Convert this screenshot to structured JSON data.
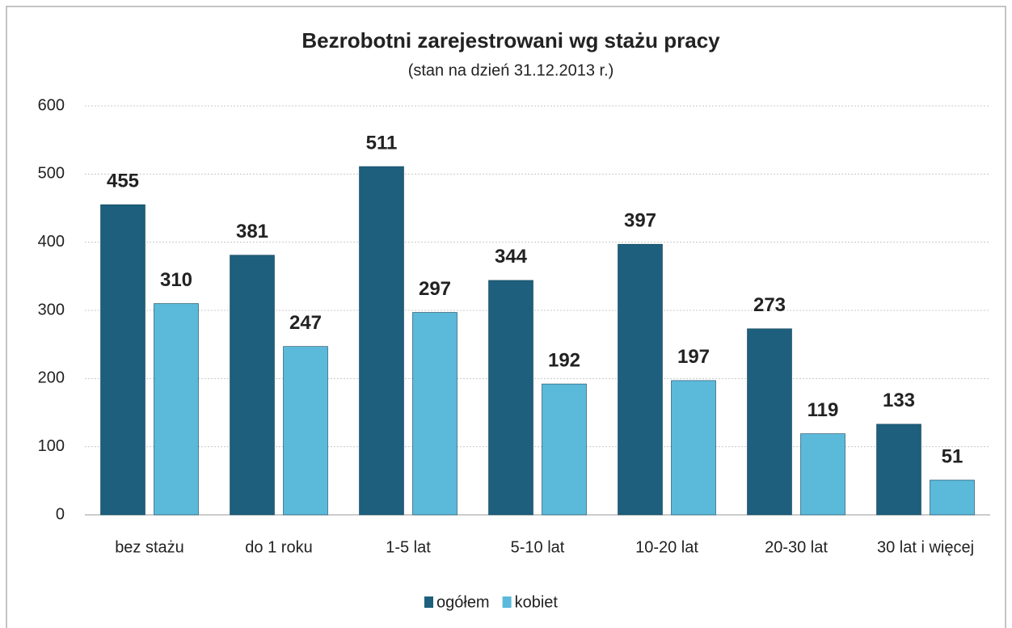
{
  "chart_data": {
    "type": "bar",
    "title": "Bezrobotni zarejestrowani wg stażu pracy",
    "subtitle": "(stan na dzień 31.12.2013 r.)",
    "categories": [
      "bez stażu",
      "do 1 roku",
      "1-5 lat",
      "5-10 lat",
      "10-20 lat",
      "20-30 lat",
      "30 lat i więcej"
    ],
    "series": [
      {
        "name": "ogółem",
        "color": "#1d5f7c",
        "values": [
          455,
          381,
          511,
          344,
          397,
          273,
          133
        ]
      },
      {
        "name": "kobiet",
        "color": "#5bb9da",
        "values": [
          310,
          247,
          297,
          192,
          197,
          119,
          51
        ]
      }
    ],
    "ylim": [
      0,
      600
    ],
    "yticks": [
      0,
      100,
      200,
      300,
      400,
      500,
      600
    ],
    "grid": true,
    "legend": "bottom"
  }
}
